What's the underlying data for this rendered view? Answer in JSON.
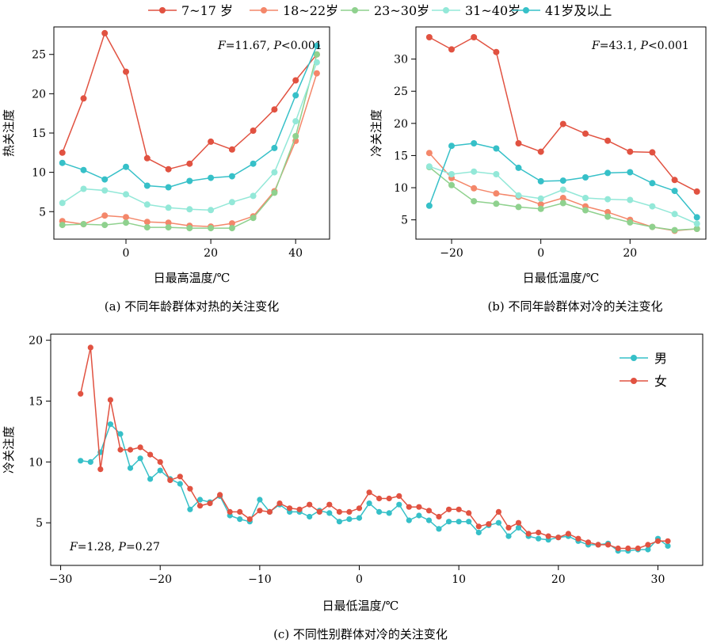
{
  "legend": {
    "items": [
      {
        "label": "7~17 岁",
        "color": "#e15241"
      },
      {
        "label": "18~22岁",
        "color": "#f4876a"
      },
      {
        "label": "23~30岁",
        "color": "#8fd18e"
      },
      {
        "label": "31~40岁",
        "color": "#93e8d8"
      },
      {
        "label": "41岁及以上",
        "color": "#36c0c8"
      }
    ]
  },
  "chart_data": [
    {
      "type": "line",
      "caption": "(a) 不同年龄群体对热的关注变化",
      "stat": {
        "F_label": "F",
        "F_value": "=11.67, ",
        "P_label": "P",
        "P_value": "<0.001"
      },
      "xlabel": "日最高温度/℃",
      "ylabel": "热关注度",
      "xlim": [
        -17,
        48
      ],
      "ylim": [
        1.5,
        28.5
      ],
      "xticks": [
        0,
        20,
        40
      ],
      "xtick_labels": [
        "0",
        "20",
        "40"
      ],
      "yticks": [
        5,
        10,
        15,
        20,
        25
      ],
      "ytick_labels": [
        "5",
        "10",
        "15",
        "20",
        "25"
      ],
      "x": [
        -15,
        -10,
        -5,
        0,
        5,
        10,
        15,
        20,
        25,
        30,
        35,
        40,
        45
      ],
      "series": [
        {
          "name": "7~17 岁",
          "color": "#e15241",
          "values": [
            12.5,
            19.4,
            27.7,
            22.8,
            11.8,
            10.4,
            11.1,
            13.9,
            12.9,
            15.3,
            18.0,
            21.7,
            25.0
          ]
        },
        {
          "name": "18~22岁",
          "color": "#f4876a",
          "values": [
            3.8,
            3.4,
            4.5,
            4.3,
            3.7,
            3.6,
            3.2,
            3.1,
            3.5,
            4.4,
            7.6,
            14.0,
            22.6
          ]
        },
        {
          "name": "23~30岁",
          "color": "#8fd18e",
          "values": [
            3.3,
            3.4,
            3.3,
            3.6,
            3.0,
            3.0,
            2.9,
            2.9,
            2.9,
            4.2,
            7.4,
            14.6,
            25.0
          ]
        },
        {
          "name": "31~40岁",
          "color": "#93e8d8",
          "values": [
            6.1,
            7.9,
            7.7,
            7.2,
            5.9,
            5.5,
            5.3,
            5.2,
            6.2,
            7.0,
            10.0,
            16.5,
            24.0
          ]
        },
        {
          "name": "41岁及以上",
          "color": "#36c0c8",
          "values": [
            11.2,
            10.3,
            9.1,
            10.7,
            8.3,
            8.1,
            8.9,
            9.3,
            9.5,
            11.1,
            13.1,
            19.8,
            26.1
          ]
        }
      ]
    },
    {
      "type": "line",
      "caption": "(b) 不同年龄群体对冷的关注变化",
      "stat": {
        "F_label": "F",
        "F_value": "=43.1, ",
        "P_label": "P",
        "P_value": "<0.001"
      },
      "xlabel": "日最低温度/℃",
      "ylabel": "冷关注度",
      "xlim": [
        -28,
        37
      ],
      "ylim": [
        2,
        35
      ],
      "xticks": [
        -20,
        0,
        20
      ],
      "xtick_labels": [
        "−20",
        "0",
        "20"
      ],
      "yticks": [
        5,
        10,
        15,
        20,
        25,
        30
      ],
      "ytick_labels": [
        "5",
        "10",
        "15",
        "20",
        "25",
        "30"
      ],
      "x": [
        -25,
        -20,
        -15,
        -10,
        -5,
        0,
        5,
        10,
        15,
        20,
        25,
        30,
        35
      ],
      "series": [
        {
          "name": "7~17 岁",
          "color": "#e15241",
          "values": [
            33.4,
            31.5,
            33.4,
            31.1,
            16.9,
            15.6,
            19.9,
            18.4,
            17.3,
            15.6,
            15.5,
            11.2,
            9.4
          ]
        },
        {
          "name": "18~22岁",
          "color": "#f4876a",
          "values": [
            15.4,
            11.5,
            9.9,
            9.1,
            8.6,
            7.4,
            8.4,
            7.1,
            6.2,
            5.0,
            3.9,
            3.3,
            3.6
          ]
        },
        {
          "name": "23~30岁",
          "color": "#8fd18e",
          "values": [
            13.2,
            10.4,
            7.9,
            7.5,
            7.0,
            6.7,
            7.6,
            6.5,
            5.5,
            4.6,
            3.9,
            3.4,
            3.6
          ]
        },
        {
          "name": "31~40岁",
          "color": "#93e8d8",
          "values": [
            13.3,
            12.1,
            12.5,
            12.1,
            8.8,
            8.3,
            9.7,
            8.4,
            8.2,
            8.1,
            7.1,
            5.9,
            4.4
          ]
        },
        {
          "name": "41岁及以上",
          "color": "#36c0c8",
          "values": [
            7.2,
            16.5,
            16.9,
            16.1,
            13.1,
            11.0,
            11.1,
            11.6,
            12.3,
            12.4,
            10.7,
            9.5,
            5.4
          ]
        }
      ]
    },
    {
      "type": "line",
      "caption": "(c) 不同性别群体对冷的关注变化",
      "stat": {
        "F_label": "F",
        "F_value": "=1.28, ",
        "P_label": "P",
        "P_value": "=0.27"
      },
      "xlabel": "日最低温度/℃",
      "ylabel": "冷关注度",
      "xlim": [
        -31,
        34.5
      ],
      "ylim": [
        1.5,
        20.5
      ],
      "xticks": [
        -30,
        -20,
        -10,
        0,
        10,
        20,
        30
      ],
      "xtick_labels": [
        "−30",
        "−20",
        "−10",
        "0",
        "10",
        "20",
        "30"
      ],
      "yticks": [
        5,
        10,
        15,
        20
      ],
      "ytick_labels": [
        "5",
        "10",
        "15",
        "20"
      ],
      "legend": [
        {
          "name": "男",
          "color": "#36c0c8"
        },
        {
          "name": "女",
          "color": "#e15241"
        }
      ],
      "x": [
        -28,
        -27,
        -26,
        -25,
        -24,
        -23,
        -22,
        -21,
        -20,
        -19,
        -18,
        -17,
        -16,
        -15,
        -14,
        -13,
        -12,
        -11,
        -10,
        -9,
        -8,
        -7,
        -6,
        -5,
        -4,
        -3,
        -2,
        -1,
        0,
        1,
        2,
        3,
        4,
        5,
        6,
        7,
        8,
        9,
        10,
        11,
        12,
        13,
        14,
        15,
        16,
        17,
        18,
        19,
        20,
        21,
        22,
        23,
        24,
        25,
        26,
        27,
        28,
        29,
        30,
        31
      ],
      "series": [
        {
          "name": "男",
          "color": "#36c0c8",
          "values": [
            10.1,
            10.0,
            10.8,
            13.1,
            12.3,
            9.5,
            10.3,
            8.6,
            9.3,
            8.6,
            8.2,
            6.1,
            6.9,
            6.7,
            7.2,
            5.6,
            5.3,
            5.1,
            6.9,
            5.9,
            6.5,
            5.9,
            5.9,
            5.5,
            6.0,
            5.8,
            5.1,
            5.3,
            5.4,
            6.6,
            5.9,
            5.8,
            6.5,
            5.2,
            5.6,
            5.2,
            4.5,
            5.1,
            5.1,
            5.1,
            4.2,
            4.8,
            5.0,
            3.9,
            4.6,
            3.9,
            3.7,
            3.6,
            3.8,
            3.9,
            3.5,
            3.2,
            3.2,
            3.3,
            2.7,
            2.7,
            2.8,
            2.8,
            3.7,
            3.1
          ]
        },
        {
          "name": "女",
          "color": "#e15241",
          "values": [
            15.6,
            19.4,
            9.4,
            15.1,
            11.0,
            11.0,
            11.2,
            10.6,
            10.0,
            8.5,
            8.8,
            7.8,
            6.4,
            6.6,
            7.3,
            5.9,
            5.9,
            5.3,
            6.0,
            5.9,
            6.6,
            6.2,
            6.1,
            6.5,
            5.9,
            6.5,
            5.9,
            5.9,
            6.2,
            7.5,
            7.0,
            7.0,
            7.2,
            6.3,
            6.3,
            6.0,
            5.5,
            6.1,
            6.1,
            5.8,
            4.7,
            4.9,
            5.9,
            4.6,
            5.0,
            4.1,
            4.2,
            3.9,
            3.8,
            4.1,
            3.7,
            3.4,
            3.2,
            3.2,
            2.9,
            2.9,
            2.9,
            3.2,
            3.5,
            3.5
          ]
        }
      ]
    }
  ]
}
